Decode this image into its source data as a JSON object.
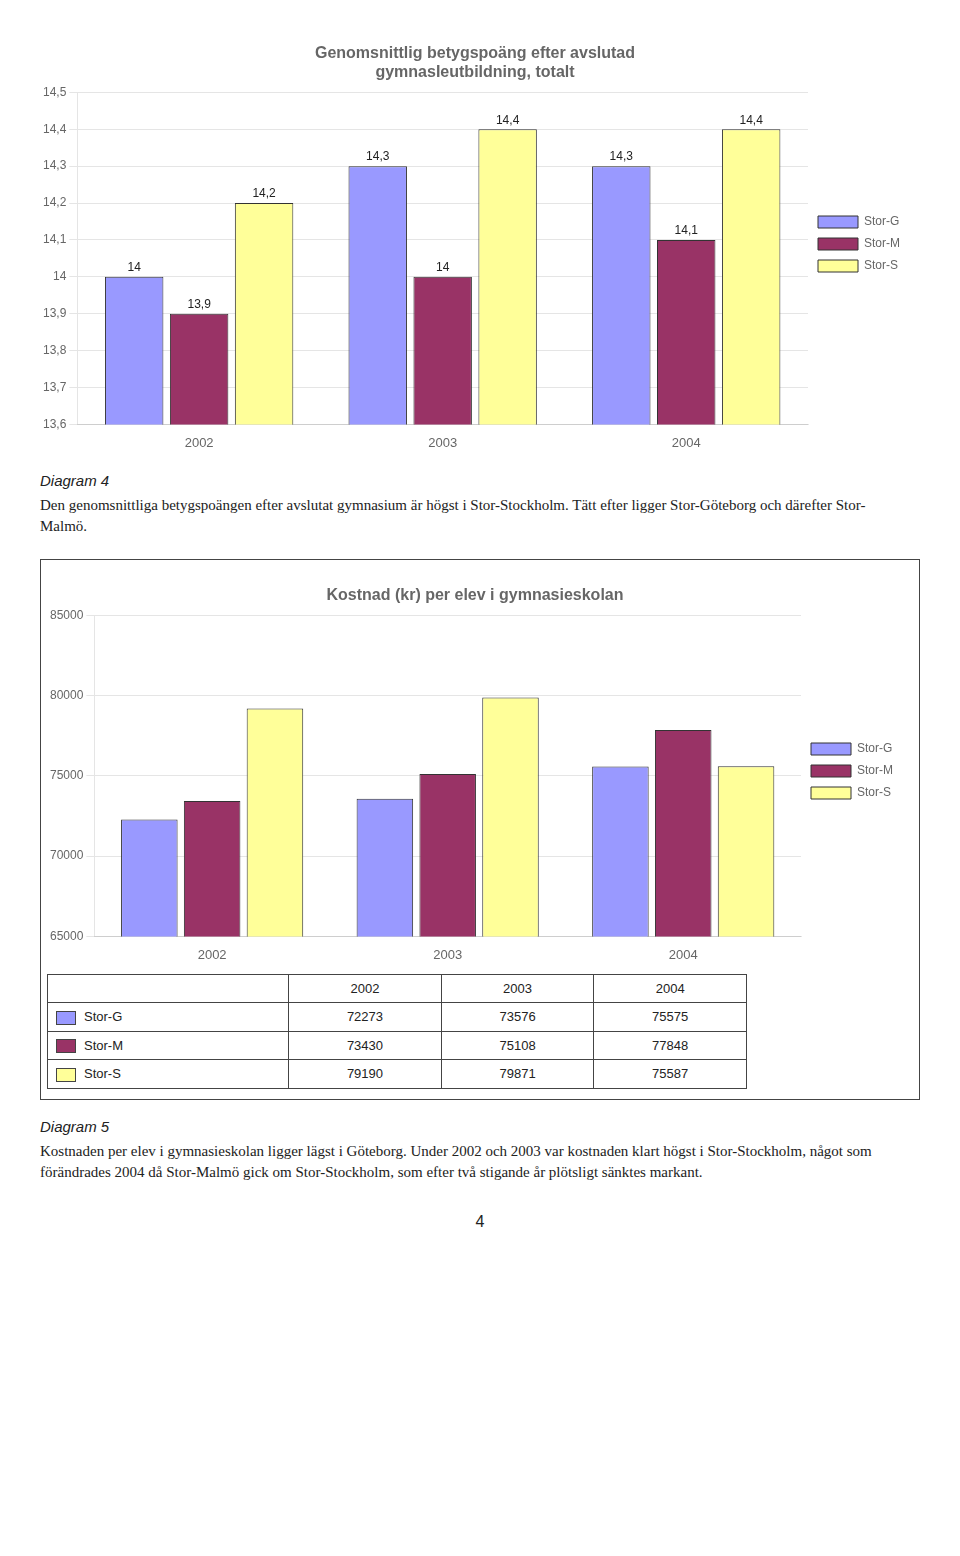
{
  "chart_data": [
    {
      "type": "bar",
      "title": "Genomsnittlig betygspoäng efter avslutad\ngymnasIeutbildning, totalt",
      "categories": [
        "2002",
        "2003",
        "2004"
      ],
      "series": [
        {
          "name": "Stor-G",
          "color": "#9999FF",
          "values": [
            14.0,
            14.3,
            14.3
          ],
          "value_labels": [
            "14",
            "14,3",
            "14,3"
          ]
        },
        {
          "name": "Stor-M",
          "color": "#993366",
          "values": [
            13.9,
            14.0,
            14.1
          ],
          "value_labels": [
            "13,9",
            "14",
            "14,1"
          ]
        },
        {
          "name": "Stor-S",
          "color": "#FFFF99",
          "values": [
            14.2,
            14.4,
            14.4
          ],
          "value_labels": [
            "14,2",
            "14,4",
            "14,4"
          ]
        }
      ],
      "ylim": [
        13.6,
        14.5
      ],
      "yticks": [
        {
          "value": 13.6,
          "label": "13,6"
        },
        {
          "value": 13.7,
          "label": "13,7"
        },
        {
          "value": 13.8,
          "label": "13,8"
        },
        {
          "value": 13.9,
          "label": "13,9"
        },
        14,
        {
          "value": 14.1,
          "label": "14,1"
        },
        {
          "value": 14.2,
          "label": "14,2"
        },
        {
          "value": 14.3,
          "label": "14,3"
        },
        {
          "value": 14.4,
          "label": "14,4"
        },
        {
          "value": 14.5,
          "label": "14,5"
        }
      ],
      "grid": true,
      "legend": "right",
      "data_labels": true,
      "annotations": [
        "Diagram 4",
        "Den genomsnittliga betygspoängen efter avslutat gymnasium är högst i Stor-Stockholm. Tätt efter ligger Stor-Göteborg och därefter Stor-Malmö."
      ]
    },
    {
      "type": "bar",
      "title": "Kostnad (kr) per elev i gymnasieskolan",
      "categories": [
        "2002",
        "2003",
        "2004"
      ],
      "series": [
        {
          "name": "Stor-G",
          "color": "#9999FF",
          "values": [
            72273,
            73576,
            75575
          ]
        },
        {
          "name": "Stor-M",
          "color": "#993366",
          "values": [
            73430,
            75108,
            77848
          ]
        },
        {
          "name": "Stor-S",
          "color": "#FFFF99",
          "values": [
            79190,
            79871,
            75587
          ]
        }
      ],
      "ylim": [
        65000,
        85000
      ],
      "yticks": [
        65000,
        70000,
        75000,
        80000,
        85000
      ],
      "grid": true,
      "legend": "right",
      "data_labels": false,
      "table": {
        "columns": [
          "2002",
          "2003",
          "2004"
        ],
        "rows": [
          {
            "name": "Stor-G",
            "values": [
              72273,
              73576,
              75575
            ]
          },
          {
            "name": "Stor-M",
            "values": [
              73430,
              75108,
              77848
            ]
          },
          {
            "name": "Stor-S",
            "values": [
              79190,
              79871,
              75587
            ]
          }
        ]
      },
      "annotations": [
        "Diagram 5",
        "Kostnaden per elev i gymnasieskolan ligger lägst i Göteborg. Under 2002 och 2003 var kostnaden klart högst i Stor-Stockholm, något som förändrades 2004 då Stor-Malmö gick om Stor-Stockholm, som efter två stigande år plötsligt sänktes markant."
      ]
    }
  ],
  "page_number": "4"
}
